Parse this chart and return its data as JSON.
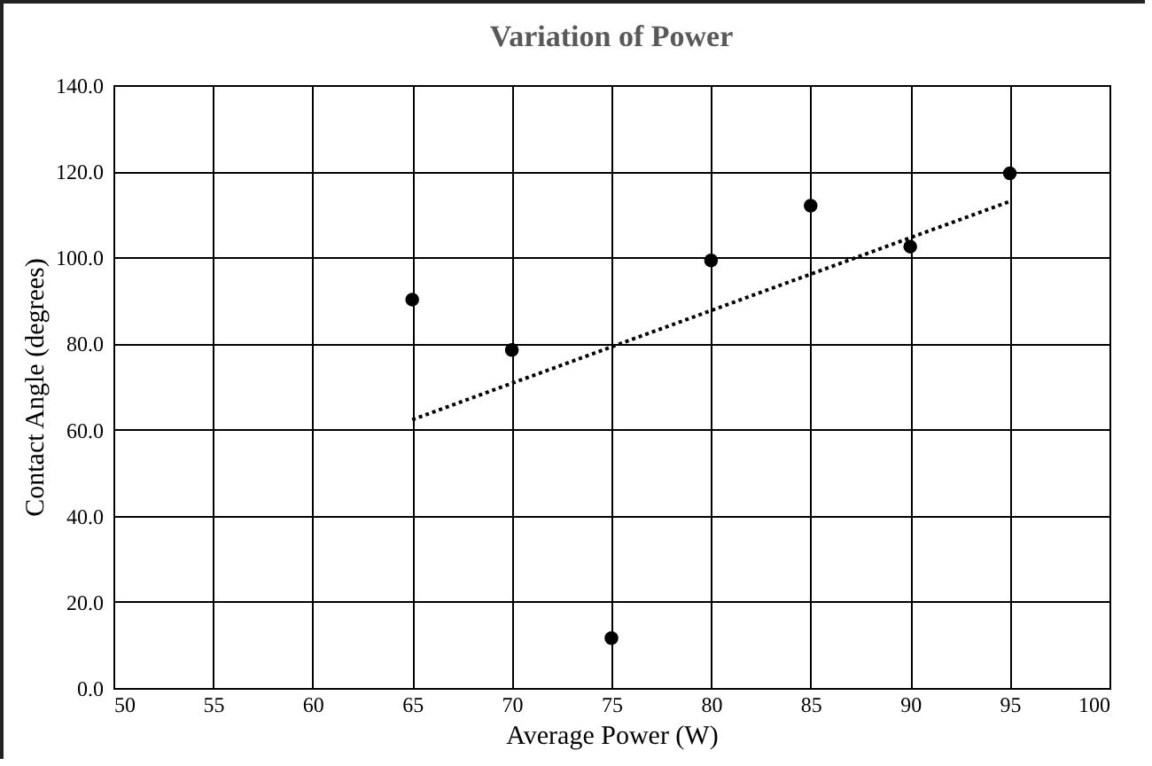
{
  "chart_data": {
    "type": "scatter",
    "title": "Variation  of Power",
    "xlabel": "Average Power (W)",
    "ylabel": "Contact Angle (degrees)",
    "series": [
      {
        "marker": "circle",
        "color": "#000000",
        "x": [
          65,
          70,
          75,
          80,
          85,
          90,
          95
        ],
        "values": [
          90.2,
          78.5,
          11.6,
          99.3,
          112.0,
          102.5,
          119.5
        ]
      },
      {
        "type": "line",
        "color": "#000000",
        "line_style": "dotted",
        "x": [
          65,
          95
        ],
        "values": [
          62.3,
          113.0
        ]
      }
    ],
    "xlim": [
      50,
      100
    ],
    "xticks": [
      50,
      55,
      60,
      65,
      70,
      75,
      80,
      85,
      90,
      95,
      100
    ],
    "ylim": [
      0,
      140
    ],
    "yticks": [
      {
        "value": 0,
        "label": "0.0"
      },
      {
        "value": 20,
        "label": "20.0"
      },
      {
        "value": 40,
        "label": "40.0"
      },
      {
        "value": 60,
        "label": "60.0"
      },
      {
        "value": 80,
        "label": "80.0"
      },
      {
        "value": 100,
        "label": "100.0"
      },
      {
        "value": 120,
        "label": "120.0"
      },
      {
        "value": 140,
        "label": "140.0"
      }
    ],
    "grid": true
  }
}
